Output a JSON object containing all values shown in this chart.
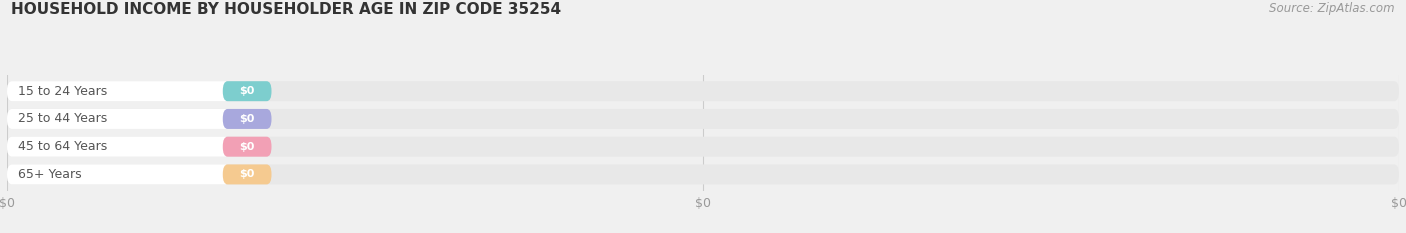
{
  "title": "HOUSEHOLD INCOME BY HOUSEHOLDER AGE IN ZIP CODE 35254",
  "source": "Source: ZipAtlas.com",
  "categories": [
    "15 to 24 Years",
    "25 to 44 Years",
    "45 to 64 Years",
    "65+ Years"
  ],
  "values": [
    0,
    0,
    0,
    0
  ],
  "bar_colors": [
    "#7dcece",
    "#a8a8dd",
    "#f2a0b5",
    "#f5ca90"
  ],
  "background_color": "#f0f0f0",
  "bar_bg_color": "#e8e8e8",
  "title_fontsize": 11,
  "source_fontsize": 8.5,
  "tick_fontsize": 9
}
